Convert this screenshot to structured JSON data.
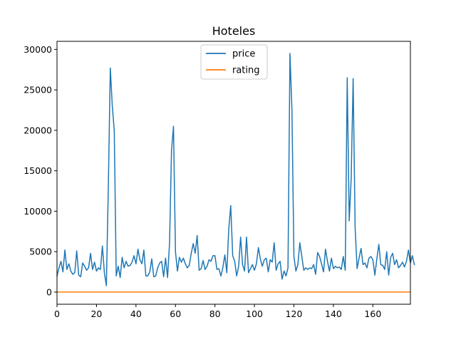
{
  "chart_data": {
    "type": "line",
    "title": "Hoteles",
    "xlabel": "",
    "ylabel": "",
    "xlim": [
      0,
      179
    ],
    "ylim": [
      -1500,
      31000
    ],
    "xticks": [
      0,
      20,
      40,
      60,
      80,
      100,
      120,
      140,
      160
    ],
    "yticks": [
      0,
      5000,
      10000,
      15000,
      20000,
      25000,
      30000
    ],
    "grid": false,
    "legend_position": "upper center",
    "series": [
      {
        "name": "price",
        "color": "#1f77b4",
        "values": [
          2000,
          3000,
          3800,
          2500,
          5200,
          2800,
          3500,
          2600,
          2200,
          2400,
          5100,
          2100,
          1900,
          3600,
          3200,
          2700,
          3000,
          4800,
          2800,
          3700,
          2600,
          3000,
          2800,
          5700,
          2400,
          800,
          13000,
          27700,
          23000,
          20000,
          2000,
          3200,
          1800,
          4300,
          3000,
          3800,
          3200,
          3300,
          3700,
          4500,
          3500,
          5300,
          4000,
          3500,
          5200,
          2000,
          2000,
          2500,
          4100,
          1900,
          2000,
          3000,
          3600,
          3800,
          1900,
          4200,
          1800,
          6000,
          17500,
          20500,
          5000,
          2600,
          4300,
          3700,
          4200,
          3500,
          3000,
          3300,
          4800,
          6000,
          4800,
          7000,
          2700,
          2900,
          3900,
          2800,
          3200,
          4000,
          3800,
          4500,
          4500,
          2800,
          2900,
          2000,
          3000,
          4600,
          2400,
          7800,
          10700,
          4500,
          3800,
          2000,
          3200,
          6800,
          3400,
          2600,
          6800,
          2400,
          2900,
          3400,
          2700,
          3500,
          5500,
          4100,
          3200,
          4000,
          4200,
          2500,
          4000,
          3700,
          6100,
          2700,
          3500,
          3800,
          1600,
          2600,
          2000,
          3000,
          29500,
          22500,
          4400,
          2600,
          3400,
          6100,
          4400,
          2700,
          3000,
          2800,
          3000,
          2900,
          3400,
          2200,
          4900,
          4400,
          3500,
          2500,
          5300,
          3800,
          2600,
          4200,
          2900,
          3200,
          3000,
          3100,
          2800,
          4400,
          2700,
          26500,
          8800,
          14000,
          26400,
          8000,
          2900,
          4200,
          5400,
          3400,
          3600,
          3000,
          4200,
          4400,
          4000,
          2100,
          4100,
          5900,
          3400,
          3300,
          2800,
          5000,
          2100,
          4300,
          4800,
          3400,
          4000,
          3000,
          3300,
          3700,
          3100,
          3800,
          5200,
          3600,
          4500,
          3400
        ]
      },
      {
        "name": "rating",
        "color": "#ff7f0e",
        "values": [
          8,
          8,
          8,
          8,
          8,
          8,
          8,
          8,
          8,
          8,
          8,
          8,
          8,
          8,
          8,
          8,
          8,
          8,
          8,
          8,
          8,
          8,
          8,
          8,
          8,
          8,
          8,
          8,
          8,
          8,
          8,
          8,
          8,
          8,
          8,
          8,
          8,
          8,
          8,
          8,
          8,
          8,
          8,
          8,
          8,
          8,
          8,
          8,
          8,
          8,
          8,
          8,
          8,
          8,
          8,
          8,
          8,
          8,
          8,
          8,
          8,
          8,
          8,
          8,
          8,
          8,
          8,
          8,
          8,
          8,
          8,
          8,
          8,
          8,
          8,
          8,
          8,
          8,
          8,
          8,
          8,
          8,
          8,
          8,
          8,
          8,
          8,
          8,
          8,
          8,
          8,
          8,
          8,
          8,
          8,
          8,
          8,
          8,
          8,
          8,
          8,
          8,
          8,
          8,
          8,
          8,
          8,
          8,
          8,
          8,
          8,
          8,
          8,
          8,
          8,
          8,
          8,
          8,
          8,
          8,
          8,
          8,
          8,
          8,
          8,
          8,
          8,
          8,
          8,
          8,
          8,
          8,
          8,
          8,
          8,
          8,
          8,
          8,
          8,
          8,
          8,
          8,
          8,
          8,
          8,
          8,
          8,
          8,
          8,
          8,
          8,
          8,
          8,
          8,
          8,
          8,
          8,
          8,
          8,
          8,
          8,
          8,
          8,
          8,
          8,
          8,
          8,
          8,
          8,
          8,
          8,
          8,
          8,
          8,
          8,
          8,
          8,
          8,
          8,
          8
        ]
      }
    ]
  }
}
